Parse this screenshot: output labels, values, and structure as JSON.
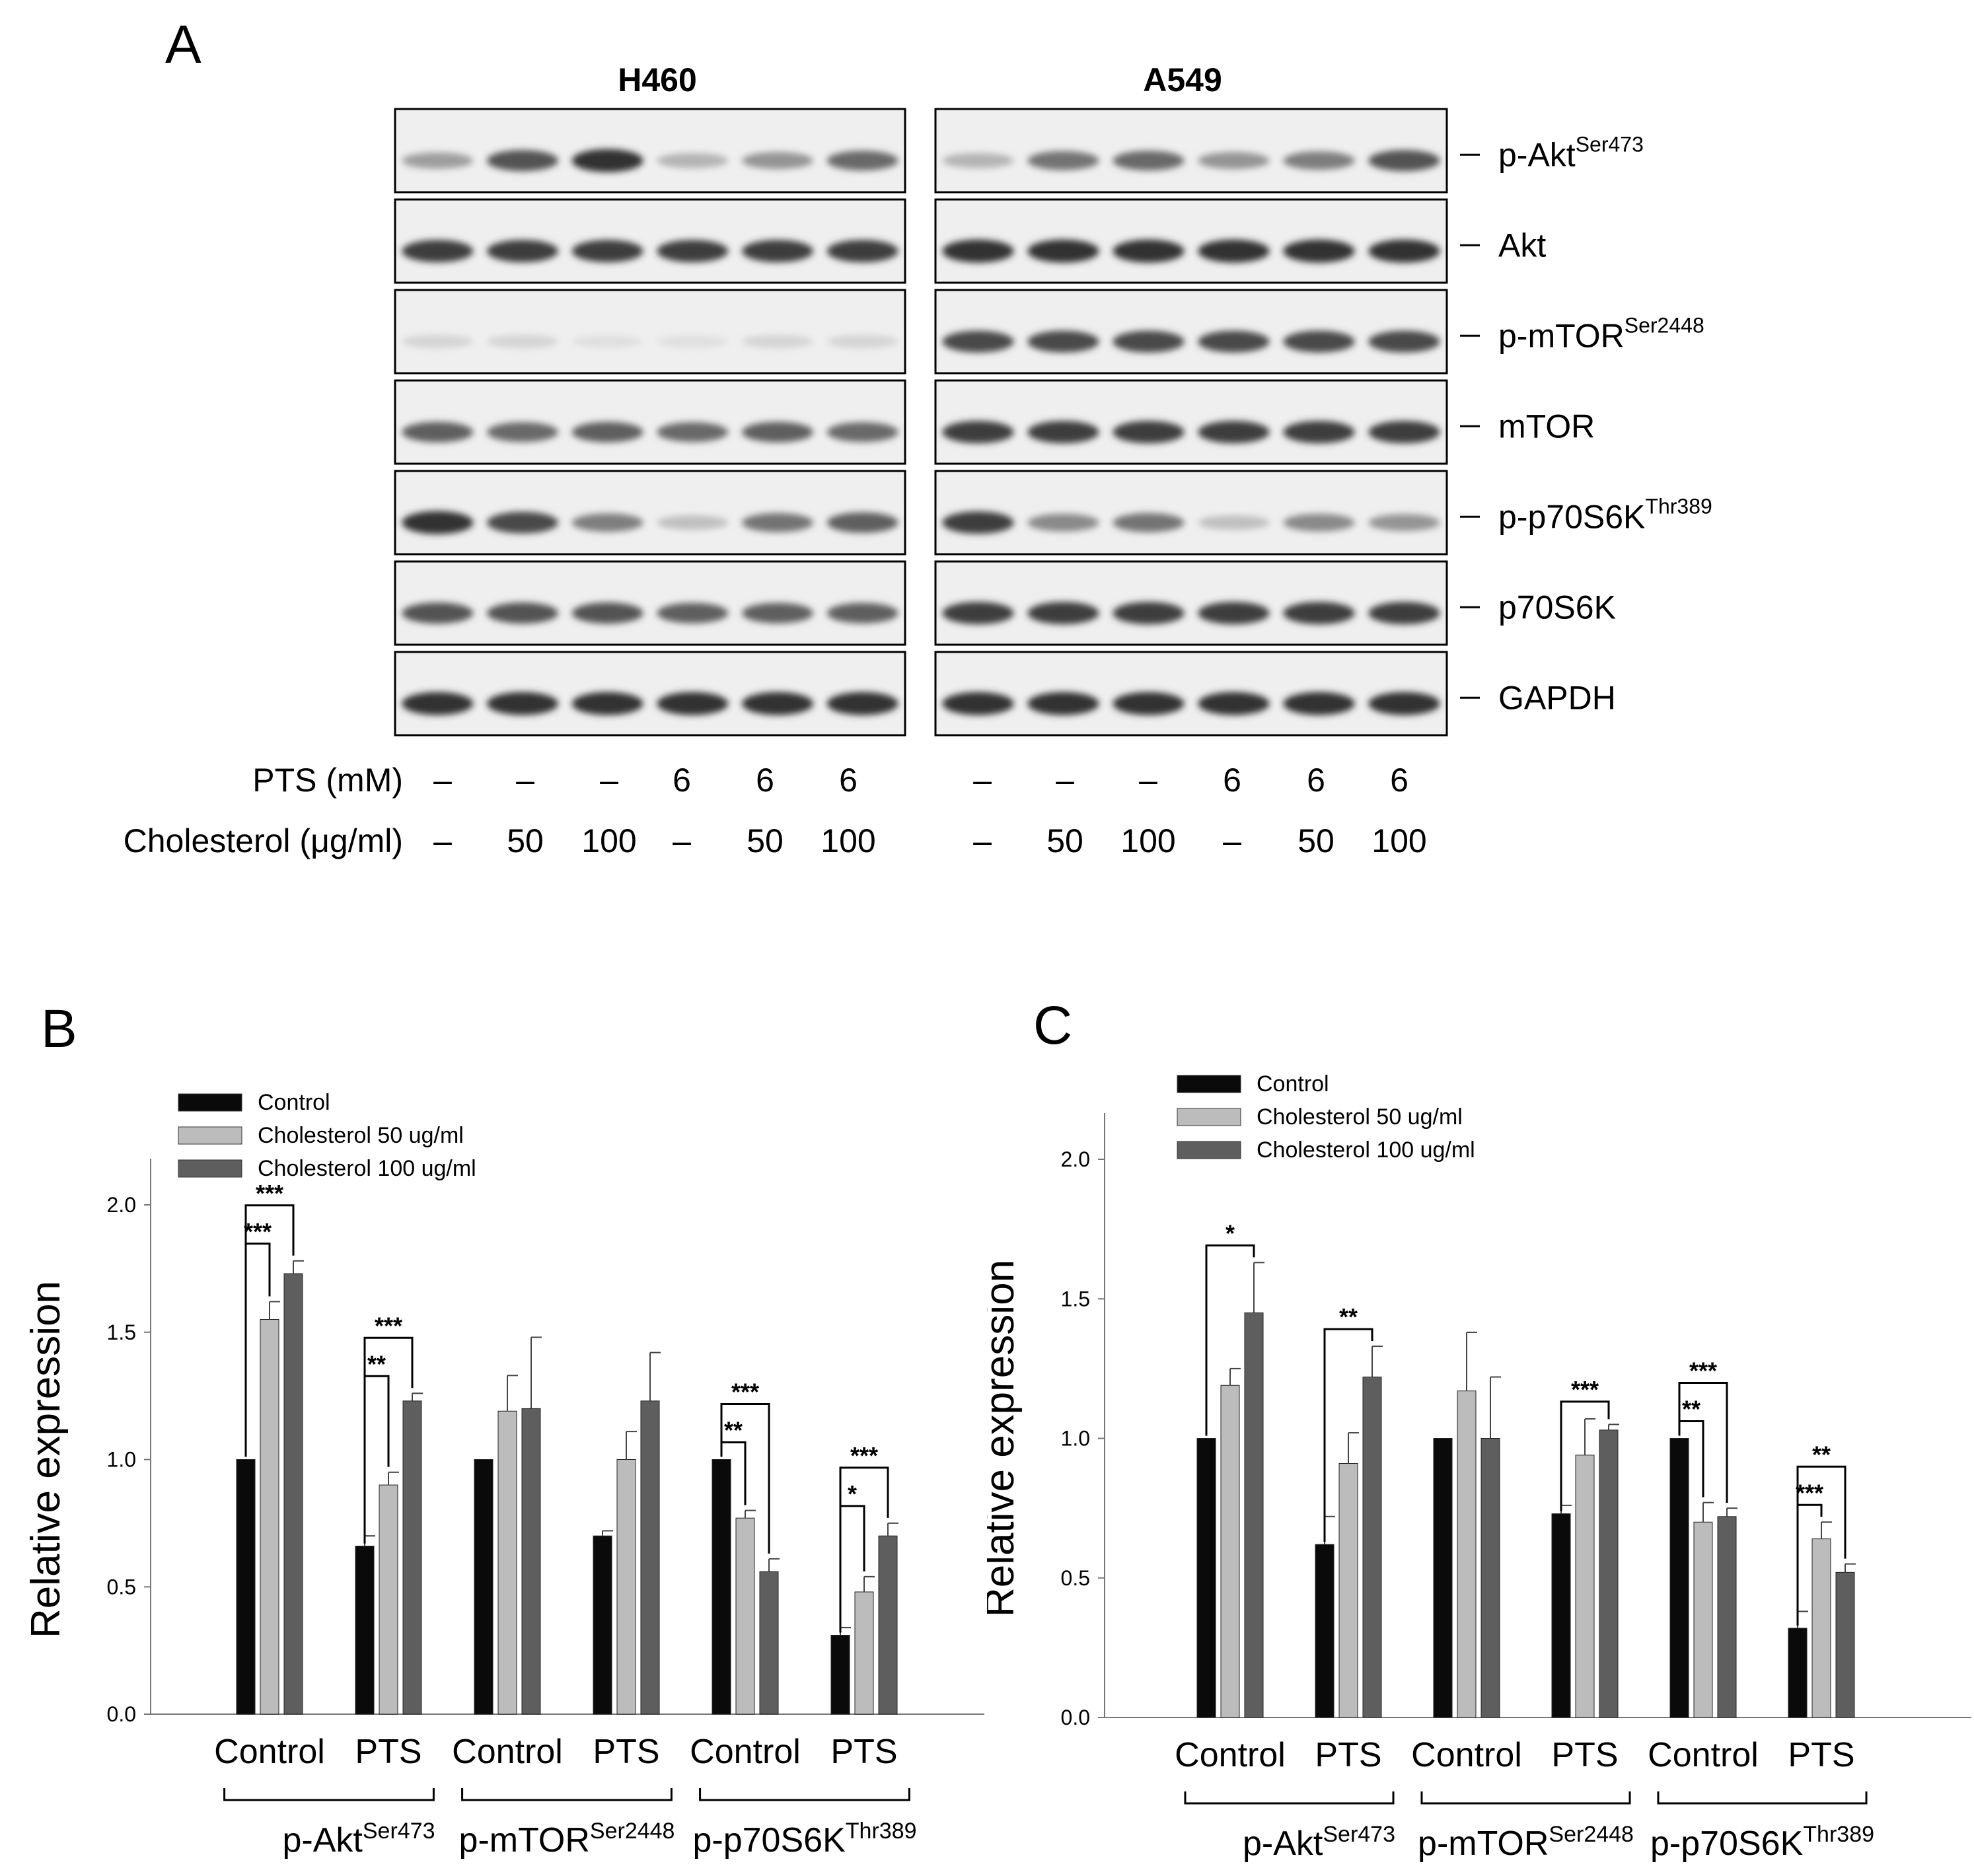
{
  "panel_letters": {
    "a": "A",
    "b": "B",
    "c": "C"
  },
  "blot": {
    "cell_lines": [
      "H460",
      "A549"
    ],
    "proteins": [
      {
        "name": "p-Akt",
        "sup": "Ser473"
      },
      {
        "name": "Akt",
        "sup": ""
      },
      {
        "name": "p-mTOR",
        "sup": "Ser2448"
      },
      {
        "name": "mTOR",
        "sup": ""
      },
      {
        "name": "p-p70S6K",
        "sup": "Thr389"
      },
      {
        "name": "p70S6K",
        "sup": ""
      },
      {
        "name": "GAPDH",
        "sup": ""
      }
    ],
    "pts_label": "PTS (mM)",
    "cholesterol_label": "Cholesterol (μg/ml)",
    "pts_values": [
      "–",
      "–",
      "–",
      "6",
      "6",
      "6"
    ],
    "cholesterol_values": [
      "–",
      "50",
      "100",
      "–",
      "50",
      "100"
    ]
  },
  "chart_data": [
    {
      "type": "bar",
      "panel": "B",
      "ylabel": "Relative expression",
      "ylim": [
        0,
        2.0
      ],
      "yticks": [
        "0.0",
        "0.5",
        "1.0",
        "1.5",
        "2.0"
      ],
      "categories": [
        "Control",
        "PTS",
        "Control",
        "PTS",
        "Control",
        "PTS"
      ],
      "groups": [
        {
          "name": "p-Akt",
          "sup": "Ser473"
        },
        {
          "name": "p-mTOR",
          "sup": "Ser2448"
        },
        {
          "name": "p-p70S6K",
          "sup": "Thr389"
        }
      ],
      "series": [
        {
          "name": "Control",
          "values": [
            1.0,
            0.66,
            1.0,
            0.7,
            1.0,
            0.31
          ],
          "errors": [
            0,
            0.04,
            0,
            0.02,
            0,
            0.03
          ]
        },
        {
          "name": "Cholesterol 50 ug/ml",
          "values": [
            1.55,
            0.9,
            1.19,
            1.0,
            0.77,
            0.48
          ],
          "errors": [
            0.07,
            0.05,
            0.14,
            0.11,
            0.03,
            0.06
          ]
        },
        {
          "name": "Cholesterol 100 ug/ml",
          "values": [
            1.73,
            1.23,
            1.2,
            1.23,
            0.56,
            0.7
          ],
          "errors": [
            0.05,
            0.03,
            0.28,
            0.19,
            0.05,
            0.05
          ]
        }
      ],
      "significance": [
        {
          "category": 0,
          "to_series": 2,
          "label": "***"
        },
        {
          "category": 0,
          "to_series": 1,
          "label": "***"
        },
        {
          "category": 1,
          "to_series": 2,
          "label": "***"
        },
        {
          "category": 1,
          "to_series": 1,
          "label": "**"
        },
        {
          "category": 4,
          "to_series": 2,
          "label": "***"
        },
        {
          "category": 4,
          "to_series": 1,
          "label": "**"
        },
        {
          "category": 5,
          "to_series": 2,
          "label": "***"
        },
        {
          "category": 5,
          "to_series": 1,
          "label": "*"
        }
      ],
      "legend_position": "top-left"
    },
    {
      "type": "bar",
      "panel": "C",
      "ylabel": "Relative expression",
      "ylim": [
        0,
        2.0
      ],
      "yticks": [
        "0.0",
        "0.5",
        "1.0",
        "1.5",
        "2.0"
      ],
      "categories": [
        "Control",
        "PTS",
        "Control",
        "PTS",
        "Control",
        "PTS"
      ],
      "groups": [
        {
          "name": "p-Akt",
          "sup": "Ser473"
        },
        {
          "name": "p-mTOR",
          "sup": "Ser2448"
        },
        {
          "name": "p-p70S6K",
          "sup": "Thr389"
        }
      ],
      "series": [
        {
          "name": "Control",
          "values": [
            1.0,
            0.62,
            1.0,
            0.73,
            1.0,
            0.32
          ],
          "errors": [
            0,
            0.1,
            0,
            0.03,
            0,
            0.06
          ]
        },
        {
          "name": "Cholesterol 50 ug/ml",
          "values": [
            1.19,
            0.91,
            1.17,
            0.94,
            0.7,
            0.64
          ],
          "errors": [
            0.06,
            0.11,
            0.21,
            0.13,
            0.07,
            0.06
          ]
        },
        {
          "name": "Cholesterol 100 ug/ml",
          "values": [
            1.45,
            1.22,
            1.0,
            1.03,
            0.72,
            0.52
          ],
          "errors": [
            0.18,
            0.11,
            0.22,
            0.02,
            0.03,
            0.03
          ]
        }
      ],
      "significance": [
        {
          "category": 0,
          "to_series": 2,
          "label": "*"
        },
        {
          "category": 1,
          "to_series": 2,
          "label": "**"
        },
        {
          "category": 3,
          "to_series": 2,
          "label": "***"
        },
        {
          "category": 4,
          "to_series": 2,
          "label": "***"
        },
        {
          "category": 4,
          "to_series": 1,
          "label": "**"
        },
        {
          "category": 5,
          "to_series": 2,
          "label": "**"
        },
        {
          "category": 5,
          "to_series": 1,
          "label": "***"
        }
      ],
      "legend_position": "top-left"
    }
  ],
  "colors": {
    "control": "#0a0a0a",
    "chol50": "#bcbcbc",
    "chol100": "#5e5e5e"
  }
}
